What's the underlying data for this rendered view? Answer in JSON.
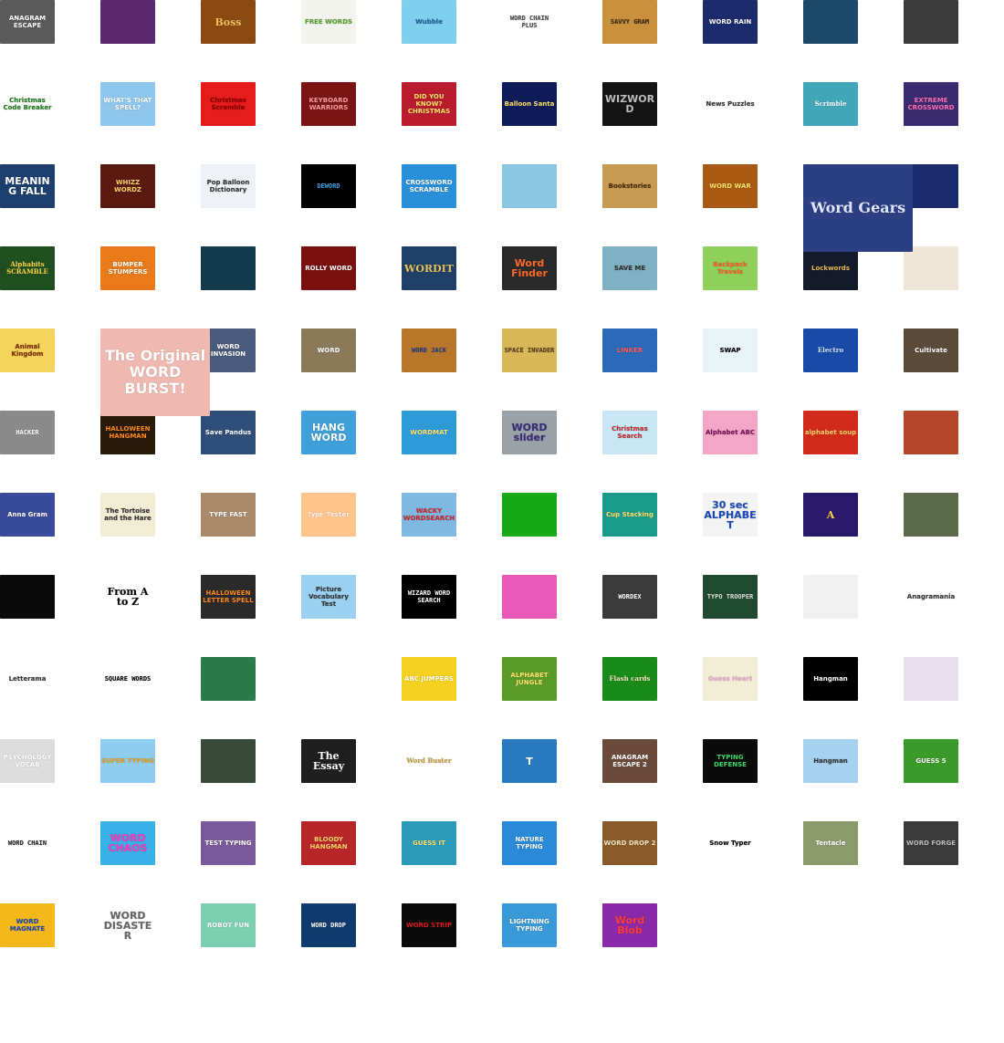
{
  "tiles": [
    {
      "label": "ANAGRAM ESCAPE",
      "bg": "#5a5a5a",
      "fg": "#ffffff"
    },
    {
      "label": "",
      "bg": "#5b2a6e",
      "fg": "#ffffff"
    },
    {
      "label": "Boss",
      "bg": "#8a4a12",
      "fg": "#f3c15a",
      "cls": "lg serif"
    },
    {
      "label": "FREE WORDS",
      "bg": "#f4f4ee",
      "fg": "#5aa02c"
    },
    {
      "label": "Wubble",
      "bg": "#7fd0ee",
      "fg": "#1e5f9c"
    },
    {
      "label": "WORD CHAIN PLUS",
      "bg": "#ffffff",
      "fg": "#444444",
      "cls": "mono"
    },
    {
      "label": "SAVVY GRAM",
      "bg": "#c9913e",
      "fg": "#3a2a12",
      "cls": "mono"
    },
    {
      "label": "WORD RAIN",
      "bg": "#1c2b6b",
      "fg": "#ffffff"
    },
    {
      "label": "",
      "bg": "#1e4a6a",
      "fg": "#ffffff"
    },
    {
      "label": "",
      "bg": "#3a3a3a",
      "fg": "#ffffff"
    },
    {
      "label": "Christmas Code Breaker",
      "bg": "#ffffff",
      "fg": "#1b7a1b"
    },
    {
      "label": "WHAT'S THAT SPELL?",
      "bg": "#8fc6ee",
      "fg": "#ffffff"
    },
    {
      "label": "Christmas Scramble",
      "bg": "#e61b1b",
      "fg": "#8c0000"
    },
    {
      "label": "KEYBOARD WARRIORS",
      "bg": "#7a1515",
      "fg": "#ff9a9a"
    },
    {
      "label": "DID YOU KNOW? CHRISTMAS",
      "bg": "#b81c2e",
      "fg": "#ffe36b"
    },
    {
      "label": "Balloon Santa",
      "bg": "#0e1b58",
      "fg": "#ffe36b"
    },
    {
      "label": "WIZWORD",
      "bg": "#141414",
      "fg": "#bdbdbd",
      "cls": "lg"
    },
    {
      "label": "News Puzzles",
      "bg": "#ffffff",
      "fg": "#333333"
    },
    {
      "label": "Scrimble",
      "bg": "#41a6b8",
      "fg": "#ffffff",
      "cls": "serif"
    },
    {
      "label": "EXTREME CROSSWORD",
      "bg": "#3a2a6e",
      "fg": "#ff6fb5"
    },
    {
      "label": "MEANING FALL",
      "bg": "#1d3f6e",
      "fg": "#ffffff",
      "cls": "lg"
    },
    {
      "label": "WHIZZ WORDZ",
      "bg": "#5a1a12",
      "fg": "#ffd36b"
    },
    {
      "label": "Pop Balloon Dictionary",
      "bg": "#eef2f6",
      "fg": "#333333"
    },
    {
      "label": "DEWORD",
      "bg": "#000000",
      "fg": "#37a3e6",
      "cls": "mono"
    },
    {
      "label": "CROSSWORD SCRAMBLE",
      "bg": "#2a8fd9",
      "fg": "#ffffff"
    },
    {
      "label": "",
      "bg": "#8cc6e0",
      "fg": "#ffffff"
    },
    {
      "label": "Bookstories",
      "bg": "#c79b52",
      "fg": "#4a2a0a"
    },
    {
      "label": "WORD WAR",
      "bg": "#a85a12",
      "fg": "#ffe36b"
    },
    {
      "label": "Word Gears",
      "bg": "#2b3f82",
      "fg": "#dfe6ff",
      "cls": "big serif"
    },
    {
      "label": "",
      "bg": "#1c2b6b",
      "fg": "#ff6fb5"
    },
    {
      "label": "Alphabits SCRAMBLE",
      "bg": "#1f4f1f",
      "fg": "#ffd84a",
      "cls": "serif"
    },
    {
      "label": "BUMPER STUMPERS",
      "bg": "#e87a1a",
      "fg": "#ffffff"
    },
    {
      "label": "",
      "bg": "#133a4a",
      "fg": "#ffffff"
    },
    {
      "label": "ROLLY WORD",
      "bg": "#7a0f0f",
      "fg": "#ffffff"
    },
    {
      "label": "WORDIT",
      "bg": "#1f3f66",
      "fg": "#e6c35a",
      "cls": "lg serif"
    },
    {
      "label": "Word Finder",
      "bg": "#2a2a2a",
      "fg": "#ff6a2a",
      "cls": "lg"
    },
    {
      "label": "SAVE ME",
      "bg": "#7fb0c4",
      "fg": "#333333"
    },
    {
      "label": "Backpack Travels",
      "bg": "#8fd05a",
      "fg": "#ff5a2a"
    },
    {
      "label": "Lockwords",
      "bg": "#141a2a",
      "fg": "#e6b85a"
    },
    {
      "label": "",
      "bg": "#efe6d8",
      "fg": "#5a3a1a"
    },
    {
      "label": "Animal Kingdom",
      "bg": "#f4d45a",
      "fg": "#7a2a0a"
    },
    {
      "label": "The Original WORD BURST!",
      "bg": "#efb8b0",
      "fg": "#ffffff",
      "cls": "big"
    },
    {
      "label": "WORD INVASION",
      "bg": "#4a5a7a",
      "fg": "#ffffff"
    },
    {
      "label": "WORD",
      "bg": "#8a7a5a",
      "fg": "#ffffff"
    },
    {
      "label": "WORD JACK",
      "bg": "#b8762a",
      "fg": "#1e3f8a",
      "cls": "mono"
    },
    {
      "label": "SPACE INVADER",
      "bg": "#d9b85a",
      "fg": "#5a3a1a",
      "cls": "mono"
    },
    {
      "label": "LINKER",
      "bg": "#2a6ab8",
      "fg": "#ff5a5a"
    },
    {
      "label": "SWAP",
      "bg": "#e8f4f8",
      "fg": "#000000"
    },
    {
      "label": "Electro",
      "bg": "#1a4aa8",
      "fg": "#cfe6ff",
      "cls": "serif"
    },
    {
      "label": "Cultivate",
      "bg": "#5a4a3a",
      "fg": "#ffffff"
    },
    {
      "label": "HACKER",
      "bg": "#8a8a8a",
      "fg": "#ffffff",
      "cls": "mono"
    },
    {
      "label": "HALLOWEEN HANGMAN",
      "bg": "#2a1a0a",
      "fg": "#ff8a1a"
    },
    {
      "label": "Save Pandus",
      "bg": "#2f4e7a",
      "fg": "#ffffff"
    },
    {
      "label": "HANG WORD",
      "bg": "#3f9fd8",
      "fg": "#ffffff",
      "cls": "lg"
    },
    {
      "label": "WORDMAT",
      "bg": "#2f9ad8",
      "fg": "#ffe36b"
    },
    {
      "label": "WORD slider",
      "bg": "#9aa2a8",
      "fg": "#3a2a7a",
      "cls": "lg"
    },
    {
      "label": "Christmas Search",
      "bg": "#c9e6f4",
      "fg": "#c0262a"
    },
    {
      "label": "Alphabet ABC",
      "bg": "#f4a6c6",
      "fg": "#7a0f5a"
    },
    {
      "label": "alphabet soup",
      "bg": "#d02a1a",
      "fg": "#ffd36b"
    },
    {
      "label": "",
      "bg": "#b5452a",
      "fg": "#ff5af0"
    },
    {
      "label": "Anna Gram",
      "bg": "#3a4a9a",
      "fg": "#ffffff"
    },
    {
      "label": "The Tortoise and the Hare",
      "bg": "#f2eed6",
      "fg": "#333333"
    },
    {
      "label": "TYPE FAST",
      "bg": "#a88a6a",
      "fg": "#ffffff"
    },
    {
      "label": "Type Tester",
      "bg": "#ffc48a",
      "fg": "#ffffff",
      "cls": "mono"
    },
    {
      "label": "WACKY WORDSEARCH",
      "bg": "#7fb8e0",
      "fg": "#d0262a"
    },
    {
      "label": "",
      "bg": "#17a81a",
      "fg": "#ffffff"
    },
    {
      "label": "Cup Stacking",
      "bg": "#1a9a8a",
      "fg": "#ffe36b"
    },
    {
      "label": "30 sec ALPHABET",
      "bg": "#f4f4f4",
      "fg": "#1a4ab8",
      "cls": "lg"
    },
    {
      "label": "A",
      "bg": "#2a1a6a",
      "fg": "#ffd84a",
      "cls": "lg serif"
    },
    {
      "label": "",
      "bg": "#5a6a4a",
      "fg": "#ffffff"
    },
    {
      "label": "",
      "bg": "#0a0a0a",
      "fg": "#ffffff"
    },
    {
      "label": "From A to Z",
      "bg": "#ffffff",
      "fg": "#000000",
      "cls": "lg serif"
    },
    {
      "label": "HALLOWEEN LETTER SPELL",
      "bg": "#2a2a2a",
      "fg": "#ff8a1a"
    },
    {
      "label": "Picture Vocabulary Test",
      "bg": "#9ad0f0",
      "fg": "#333333"
    },
    {
      "label": "WIZARD WORD SEARCH",
      "bg": "#000000",
      "fg": "#ffffff",
      "cls": "mono"
    },
    {
      "label": "",
      "bg": "#e85ab8",
      "fg": "#ffe36b"
    },
    {
      "label": "WORDEX",
      "bg": "#3a3a3a",
      "fg": "#ffffff",
      "cls": "mono"
    },
    {
      "label": "TYPO TROOPER",
      "bg": "#1f4a2f",
      "fg": "#dfe6df",
      "cls": "mono"
    },
    {
      "label": "",
      "bg": "#f0f0f0",
      "fg": "#333333"
    },
    {
      "label": "Anagramania",
      "bg": "#ffffff",
      "fg": "#333333"
    },
    {
      "label": "Letterama",
      "bg": "#ffffff",
      "fg": "#333333"
    },
    {
      "label": "SQUARE WORDS",
      "bg": "#ffffff",
      "fg": "#000000",
      "cls": "mono"
    },
    {
      "label": "",
      "bg": "#2a7a4a",
      "fg": "#ffffff"
    },
    {
      "label": "",
      "bg": "#ffffff",
      "fg": "#000000",
      "cls": "serif"
    },
    {
      "label": "ABC JUMPERS",
      "bg": "#f4d020",
      "fg": "#ffffff"
    },
    {
      "label": "ALPHABET JUNGLE",
      "bg": "#5a9a2a",
      "fg": "#ffe36b"
    },
    {
      "label": "Flash cards",
      "bg": "#1a8a1a",
      "fg": "#f4e6c0",
      "cls": "serif"
    },
    {
      "label": "Guess Heart",
      "bg": "#f2eed6",
      "fg": "#e6a6c6"
    },
    {
      "label": "Hangman",
      "bg": "#000000",
      "fg": "#ffffff"
    },
    {
      "label": "",
      "bg": "#e8e0ef",
      "fg": "#5a3a8a"
    },
    {
      "label": "PSYCHOLOGY VOCAB",
      "bg": "#dcdcdc",
      "fg": "#ffffff"
    },
    {
      "label": "SUPER TYPING",
      "bg": "#8fcdf0",
      "fg": "#e6a01a"
    },
    {
      "label": "",
      "bg": "#3a4a3a",
      "fg": "#ffffff"
    },
    {
      "label": "The Essay",
      "bg": "#1f1f1f",
      "fg": "#ffffff",
      "cls": "lg serif"
    },
    {
      "label": "Word Buster",
      "bg": "#ffffff",
      "fg": "#c09a3a",
      "cls": "serif"
    },
    {
      "label": "T",
      "bg": "#2a7ac0",
      "fg": "#ffffff",
      "cls": "lg"
    },
    {
      "label": "ANAGRAM ESCAPE 2",
      "bg": "#6a4a3a",
      "fg": "#ffffff"
    },
    {
      "label": "TYPING DEFENSE",
      "bg": "#0a0a0a",
      "fg": "#3ad86a"
    },
    {
      "label": "Hangman",
      "bg": "#a6d2f0",
      "fg": "#333333"
    },
    {
      "label": "GUESS 5",
      "bg": "#3a9a2a",
      "fg": "#ffffff"
    },
    {
      "label": "WORD CHAIN",
      "bg": "#ffffff",
      "fg": "#222222",
      "cls": "mono"
    },
    {
      "label": "WORD CHAOS",
      "bg": "#3ab0e8",
      "fg": "#ff3ab8",
      "cls": "lg"
    },
    {
      "label": "TEST TYPING",
      "bg": "#7a5a9a",
      "fg": "#ffffff"
    },
    {
      "label": "BLOODY HANGMAN",
      "bg": "#b8262a",
      "fg": "#ffd36b"
    },
    {
      "label": "GUESS IT",
      "bg": "#2a9ab8",
      "fg": "#ffe36b"
    },
    {
      "label": "NATURE TYPING",
      "bg": "#2a8ad8",
      "fg": "#ffffff"
    },
    {
      "label": "WORD DROP 2",
      "bg": "#8a5a2a",
      "fg": "#f4e6c0"
    },
    {
      "label": "Snow Typer",
      "bg": "#ffffff",
      "fg": "#000000"
    },
    {
      "label": "Tentacle",
      "bg": "#8a9a6a",
      "fg": "#ffffff"
    },
    {
      "label": "WORD FORGE",
      "bg": "#3a3a3a",
      "fg": "#bdbdbd"
    },
    {
      "label": "WORD MAGNATE",
      "bg": "#f4b81a",
      "fg": "#1a4ab8"
    },
    {
      "label": "WORD DISASTER",
      "bg": "#ffffff",
      "fg": "#666666",
      "cls": "lg"
    },
    {
      "label": "ROBOT FUN",
      "bg": "#7ad0b0",
      "fg": "#ffffff"
    },
    {
      "label": "WORD DROP",
      "bg": "#0e3a6e",
      "fg": "#ffffff",
      "cls": "mono"
    },
    {
      "label": "WORD STRIP",
      "bg": "#0a0a0a",
      "fg": "#d81a1a"
    },
    {
      "label": "LIGHTNING TYPING",
      "bg": "#3a9ad8",
      "fg": "#ffffff"
    },
    {
      "label": "Word Blob",
      "bg": "#8a2aa8",
      "fg": "#ff3a3a",
      "cls": "lg"
    }
  ]
}
